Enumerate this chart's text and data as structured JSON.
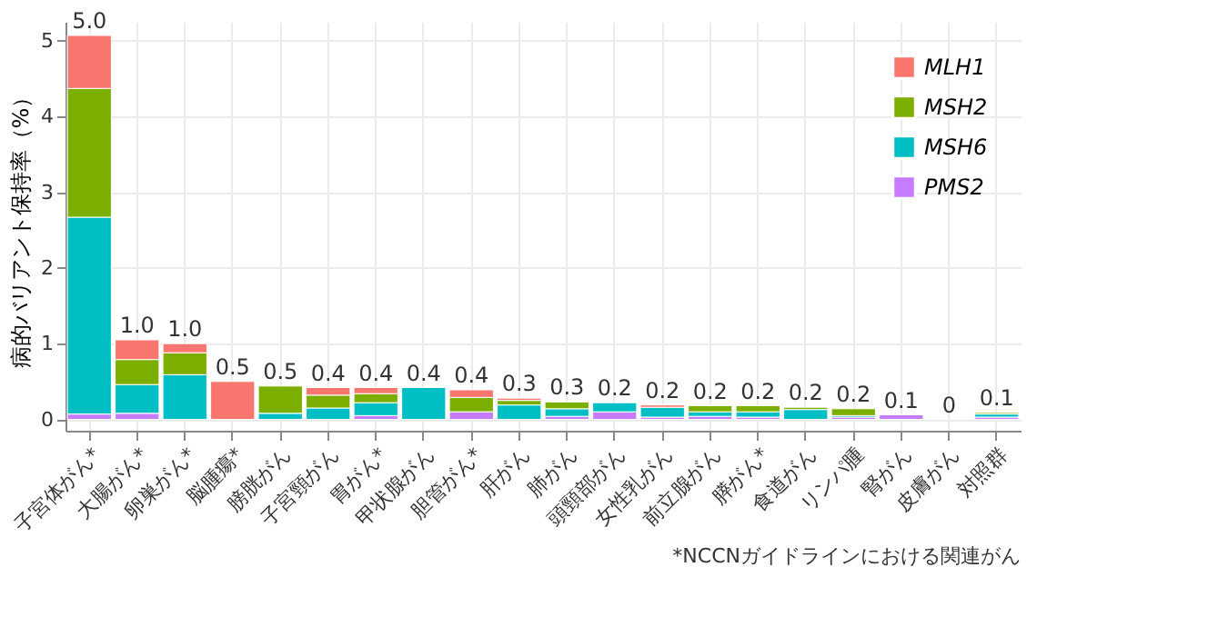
{
  "chart_data": {
    "type": "bar",
    "stacked": true,
    "ylabel": "病的バリアント保持率（%）",
    "categories": [
      "子宮体がん*",
      "大腸がん*",
      "卵巣がん*",
      "脳腫瘍*",
      "膀胱がん",
      "子宮頸がん",
      "胃がん*",
      "甲状腺がん",
      "胆管がん*",
      "肝がん",
      "肺がん",
      "頭頸部がん",
      "女性乳がん",
      "前立腺がん",
      "膵がん*",
      "食道がん",
      "リンパ腫",
      "腎がん",
      "皮膚がん",
      "対照群"
    ],
    "series": [
      {
        "name": "PMS2",
        "color": "#c77cff",
        "values": [
          0.07,
          0.08,
          0,
          0,
          0,
          0,
          0.05,
          0,
          0.1,
          null,
          0.04,
          0.1,
          0.03,
          0.04,
          0.03,
          null,
          0.03,
          0.06,
          0,
          0.03
        ]
      },
      {
        "name": "MSH6",
        "color": "#00bfc4",
        "values": [
          2.6,
          0.38,
          0.59,
          0,
          0.08,
          0.15,
          0.17,
          0.42,
          0,
          0.19,
          0.1,
          0.12,
          0.13,
          0.06,
          0.07,
          0.13,
          0.02,
          0,
          0,
          0.04
        ]
      },
      {
        "name": "MSH2",
        "color": "#7cae00",
        "values": [
          1.7,
          0.33,
          0.29,
          0,
          0.36,
          0.17,
          0.12,
          0,
          0.19,
          0.06,
          0.09,
          0,
          0,
          0.08,
          0.08,
          0.03,
          0.09,
          0,
          0,
          0.02
        ]
      },
      {
        "name": "MLH1",
        "color": "#f8766d",
        "values": [
          0.7,
          0.26,
          0.12,
          0.5,
          0,
          0.1,
          0.08,
          0,
          0.1,
          0.03,
          0,
          0,
          0.03,
          0,
          0,
          0,
          0,
          0,
          0,
          0
        ]
      }
    ],
    "totals": [
      "5.0",
      "1.0",
      "1.0",
      "0.5",
      "0.5",
      "0.4",
      "0.4",
      "0.4",
      "0.4",
      "0.3",
      "0.3",
      "0.2",
      "0.2",
      "0.2",
      "0.2",
      "0.2",
      "0.2",
      "0.1",
      "0",
      "0.1"
    ],
    "ylim": [
      -0.15,
      5.25
    ],
    "yticks": [
      0,
      1,
      2,
      3,
      4,
      5
    ],
    "grid": true,
    "legend": "top right",
    "annotations": [
      "*NCCNガイドラインにおける関連がん"
    ]
  }
}
